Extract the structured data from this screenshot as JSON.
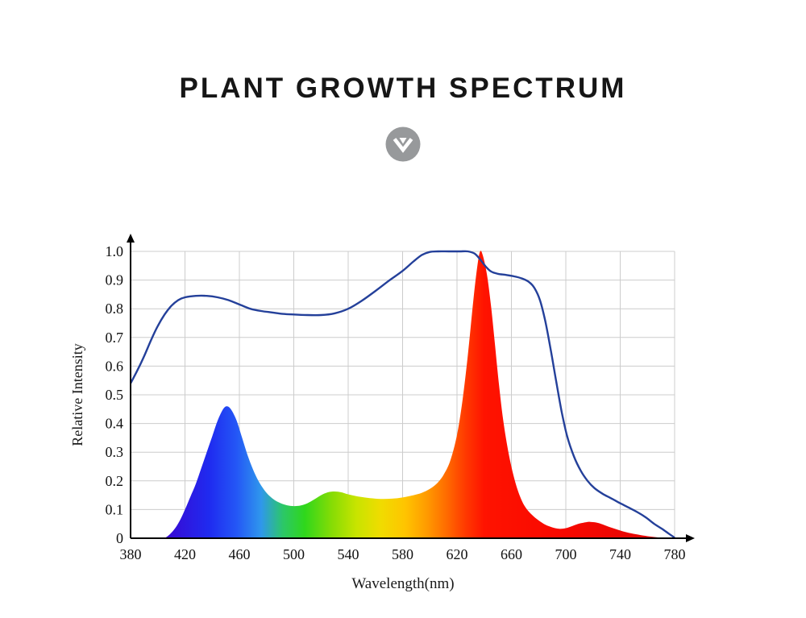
{
  "page": {
    "title": "PLANT GROWTH SPECTRUM",
    "background": "#ffffff"
  },
  "scroll_icon": {
    "circle_color": "#97999b",
    "arrow_color": "#ffffff"
  },
  "chart_data": {
    "type": "area",
    "title": "PLANT GROWTH SPECTRUM",
    "xlabel": "Wavelength(nm)",
    "ylabel": "Relative Intensity",
    "xlim": [
      380,
      780
    ],
    "ylim": [
      0,
      1.0
    ],
    "x_ticks": [
      380,
      420,
      460,
      500,
      540,
      580,
      620,
      660,
      700,
      740,
      780
    ],
    "y_ticks": [
      {
        "v": 0,
        "label": "0"
      },
      {
        "v": 0.1,
        "label": "0.1"
      },
      {
        "v": 0.2,
        "label": "0.2"
      },
      {
        "v": 0.3,
        "label": "0.3"
      },
      {
        "v": 0.4,
        "label": "0.4"
      },
      {
        "v": 0.5,
        "label": "0.5"
      },
      {
        "v": 0.6,
        "label": "0.6"
      },
      {
        "v": 0.7,
        "label": "0.7"
      },
      {
        "v": 0.8,
        "label": "0.8"
      },
      {
        "v": 0.9,
        "label": "0.9"
      },
      {
        "v": 1.0,
        "label": "1.0"
      }
    ],
    "grid": true,
    "grid_color": "#cccccc",
    "axis_color": "#000000",
    "line_color": "#24409a",
    "legend": "none",
    "series": [
      {
        "name": "LED emission spectrum (rainbow filled area)",
        "style": "filled-spectrum",
        "points": [
          [
            405,
            0
          ],
          [
            408,
            0.01
          ],
          [
            412,
            0.03
          ],
          [
            416,
            0.06
          ],
          [
            420,
            0.1
          ],
          [
            424,
            0.145
          ],
          [
            428,
            0.19
          ],
          [
            432,
            0.245
          ],
          [
            436,
            0.3
          ],
          [
            440,
            0.355
          ],
          [
            444,
            0.41
          ],
          [
            448,
            0.45
          ],
          [
            451,
            0.46
          ],
          [
            454,
            0.448
          ],
          [
            458,
            0.41
          ],
          [
            462,
            0.35
          ],
          [
            466,
            0.29
          ],
          [
            470,
            0.24
          ],
          [
            474,
            0.2
          ],
          [
            478,
            0.17
          ],
          [
            482,
            0.148
          ],
          [
            486,
            0.133
          ],
          [
            490,
            0.123
          ],
          [
            495,
            0.115
          ],
          [
            500,
            0.112
          ],
          [
            505,
            0.114
          ],
          [
            510,
            0.122
          ],
          [
            515,
            0.135
          ],
          [
            520,
            0.15
          ],
          [
            525,
            0.16
          ],
          [
            530,
            0.163
          ],
          [
            535,
            0.16
          ],
          [
            540,
            0.153
          ],
          [
            548,
            0.145
          ],
          [
            556,
            0.14
          ],
          [
            564,
            0.137
          ],
          [
            572,
            0.138
          ],
          [
            580,
            0.142
          ],
          [
            588,
            0.15
          ],
          [
            594,
            0.158
          ],
          [
            600,
            0.172
          ],
          [
            605,
            0.19
          ],
          [
            610,
            0.22
          ],
          [
            615,
            0.27
          ],
          [
            620,
            0.36
          ],
          [
            624,
            0.48
          ],
          [
            628,
            0.64
          ],
          [
            632,
            0.83
          ],
          [
            635,
            0.95
          ],
          [
            637,
            1.0
          ],
          [
            639,
            0.985
          ],
          [
            642,
            0.92
          ],
          [
            645,
            0.81
          ],
          [
            648,
            0.67
          ],
          [
            651,
            0.53
          ],
          [
            654,
            0.41
          ],
          [
            658,
            0.295
          ],
          [
            662,
            0.21
          ],
          [
            666,
            0.15
          ],
          [
            670,
            0.11
          ],
          [
            675,
            0.082
          ],
          [
            680,
            0.062
          ],
          [
            685,
            0.047
          ],
          [
            690,
            0.038
          ],
          [
            695,
            0.033
          ],
          [
            700,
            0.035
          ],
          [
            705,
            0.043
          ],
          [
            710,
            0.051
          ],
          [
            715,
            0.056
          ],
          [
            718,
            0.057
          ],
          [
            722,
            0.055
          ],
          [
            726,
            0.05
          ],
          [
            730,
            0.043
          ],
          [
            736,
            0.033
          ],
          [
            742,
            0.024
          ],
          [
            748,
            0.017
          ],
          [
            755,
            0.011
          ],
          [
            762,
            0.006
          ],
          [
            770,
            0.002
          ],
          [
            780,
            0
          ]
        ]
      },
      {
        "name": "Relative intensity envelope curve",
        "style": "line",
        "points": [
          [
            380,
            0.54
          ],
          [
            385,
            0.585
          ],
          [
            390,
            0.635
          ],
          [
            395,
            0.69
          ],
          [
            400,
            0.74
          ],
          [
            405,
            0.78
          ],
          [
            410,
            0.81
          ],
          [
            415,
            0.83
          ],
          [
            420,
            0.84
          ],
          [
            428,
            0.845
          ],
          [
            436,
            0.845
          ],
          [
            444,
            0.84
          ],
          [
            452,
            0.83
          ],
          [
            460,
            0.815
          ],
          [
            468,
            0.8
          ],
          [
            476,
            0.792
          ],
          [
            484,
            0.787
          ],
          [
            492,
            0.782
          ],
          [
            500,
            0.78
          ],
          [
            510,
            0.778
          ],
          [
            520,
            0.778
          ],
          [
            530,
            0.784
          ],
          [
            540,
            0.8
          ],
          [
            550,
            0.828
          ],
          [
            560,
            0.862
          ],
          [
            570,
            0.898
          ],
          [
            580,
            0.932
          ],
          [
            588,
            0.965
          ],
          [
            594,
            0.987
          ],
          [
            600,
            0.998
          ],
          [
            606,
            1.0
          ],
          [
            614,
            1.0
          ],
          [
            622,
            1.0
          ],
          [
            628,
            1.0
          ],
          [
            633,
            0.992
          ],
          [
            637,
            0.972
          ],
          [
            641,
            0.948
          ],
          [
            645,
            0.93
          ],
          [
            650,
            0.922
          ],
          [
            656,
            0.918
          ],
          [
            662,
            0.913
          ],
          [
            668,
            0.905
          ],
          [
            673,
            0.893
          ],
          [
            677,
            0.872
          ],
          [
            681,
            0.83
          ],
          [
            685,
            0.755
          ],
          [
            689,
            0.655
          ],
          [
            693,
            0.545
          ],
          [
            697,
            0.44
          ],
          [
            701,
            0.355
          ],
          [
            706,
            0.285
          ],
          [
            711,
            0.235
          ],
          [
            716,
            0.2
          ],
          [
            721,
            0.175
          ],
          [
            727,
            0.155
          ],
          [
            733,
            0.14
          ],
          [
            740,
            0.122
          ],
          [
            747,
            0.105
          ],
          [
            753,
            0.09
          ],
          [
            759,
            0.072
          ],
          [
            765,
            0.05
          ],
          [
            771,
            0.032
          ],
          [
            776,
            0.015
          ],
          [
            780,
            0.002
          ]
        ]
      }
    ],
    "spectrum_gradient": [
      {
        "wavelength": 405,
        "color": "#3a08d2"
      },
      {
        "wavelength": 438,
        "color": "#1f2bf0"
      },
      {
        "wavelength": 458,
        "color": "#2457f6"
      },
      {
        "wavelength": 476,
        "color": "#2f97ec"
      },
      {
        "wavelength": 492,
        "color": "#2cc768"
      },
      {
        "wavelength": 508,
        "color": "#2fd71c"
      },
      {
        "wavelength": 528,
        "color": "#86dc05"
      },
      {
        "wavelength": 546,
        "color": "#c8e400"
      },
      {
        "wavelength": 564,
        "color": "#f0dc00"
      },
      {
        "wavelength": 582,
        "color": "#ffc400"
      },
      {
        "wavelength": 598,
        "color": "#ff9a00"
      },
      {
        "wavelength": 612,
        "color": "#ff6c00"
      },
      {
        "wavelength": 626,
        "color": "#ff3a00"
      },
      {
        "wavelength": 640,
        "color": "#ff1300"
      },
      {
        "wavelength": 700,
        "color": "#f70800"
      },
      {
        "wavelength": 780,
        "color": "#e00606"
      }
    ]
  }
}
